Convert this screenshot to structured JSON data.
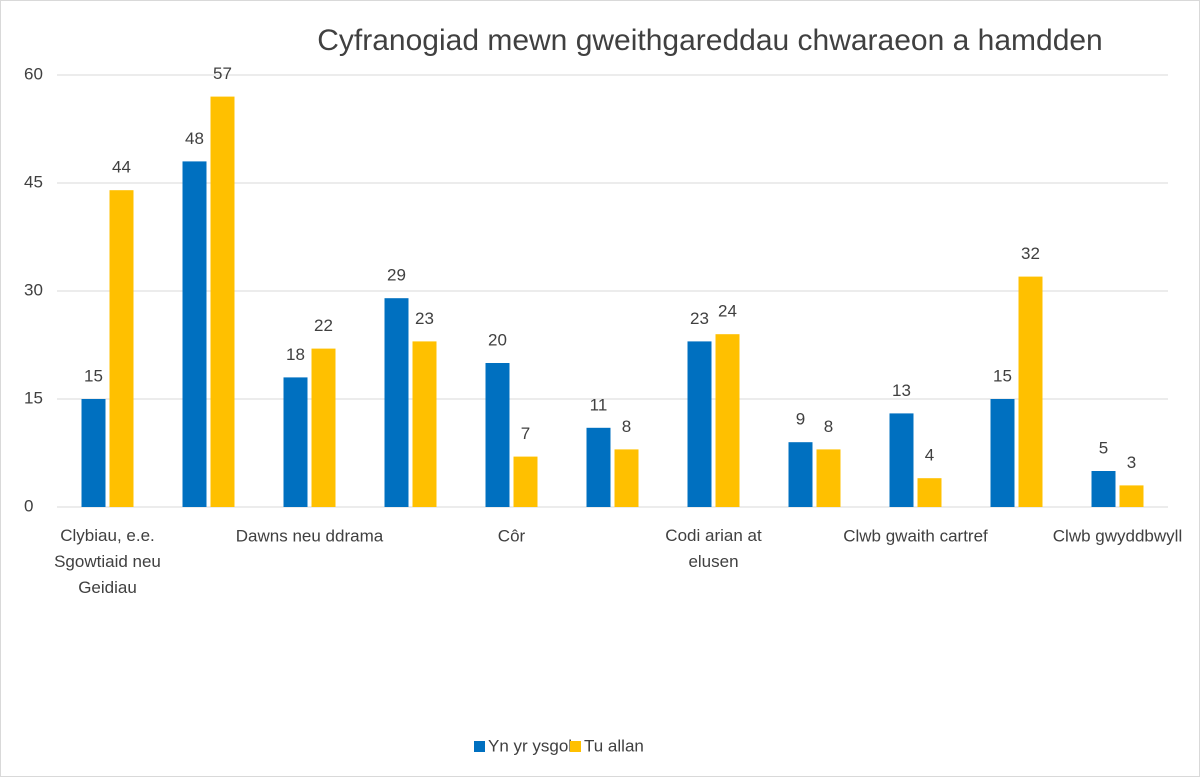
{
  "chart_data": {
    "type": "bar",
    "title": "Cyfranogiad mewn gweithgareddau chwaraeon a hamdden",
    "categories": [
      "Clybiau, e.e. Sgowtiaid neu Geidiau",
      null,
      "Dawns neu ddrama",
      null,
      "Côr",
      null,
      "Codi arian at elusen",
      null,
      "Clwb gwaith cartref",
      null,
      "Clwb gwyddbwyll"
    ],
    "series": [
      {
        "name": "Yn yr ysgol",
        "color": "#0070c0",
        "values": [
          15,
          48,
          18,
          29,
          20,
          11,
          23,
          9,
          13,
          15,
          5
        ]
      },
      {
        "name": "Tu allan",
        "color": "#ffc000",
        "values": [
          44,
          57,
          22,
          23,
          7,
          8,
          24,
          8,
          4,
          32,
          3
        ]
      }
    ],
    "ylim": [
      0,
      60
    ],
    "yticks": [
      0,
      15,
      30,
      45,
      60
    ],
    "grid": true,
    "legend": "bottom"
  }
}
